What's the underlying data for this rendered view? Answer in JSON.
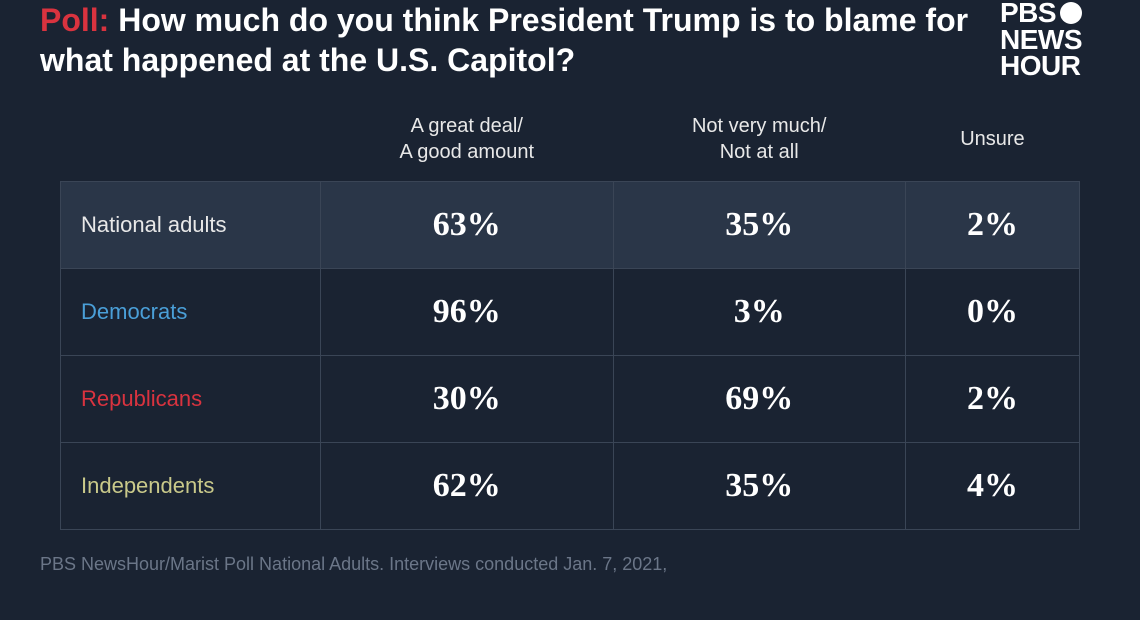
{
  "colors": {
    "background": "#1a2332",
    "text_white": "#ffffff",
    "text_light": "#e8e8e8",
    "poll_red": "#d9333f",
    "dem_blue": "#4a9fd8",
    "rep_red": "#d9333f",
    "ind_khaki": "#c9c98a",
    "border": "#3a4556",
    "highlight_row": "#2a3648",
    "footer_gray": "#6b7688"
  },
  "title": {
    "poll_label": "Poll:",
    "text": "How much do you think President Trump is to blame for what happened at the U.S. Capitol?"
  },
  "logo": {
    "line1a": "PBS",
    "line2": "NEWS",
    "line3": "HOUR"
  },
  "table": {
    "type": "table",
    "headers": [
      "",
      "A great deal/\nA good amount",
      "Not very much/\nNot at all",
      "Unsure"
    ],
    "rows": [
      {
        "label": "National adults",
        "label_color": "#e8e8e8",
        "values": [
          "63%",
          "35%",
          "2%"
        ],
        "highlight": true
      },
      {
        "label": "Democrats",
        "label_color": "#4a9fd8",
        "values": [
          "96%",
          "3%",
          "0%"
        ],
        "highlight": false
      },
      {
        "label": "Republicans",
        "label_color": "#d9333f",
        "values": [
          "30%",
          "69%",
          "2%"
        ],
        "highlight": false
      },
      {
        "label": "Independents",
        "label_color": "#c9c98a",
        "values": [
          "62%",
          "35%",
          "4%"
        ],
        "highlight": false
      }
    ],
    "header_fontsize": 20,
    "label_fontsize": 22,
    "value_fontsize": 34,
    "row_padding": 24
  },
  "footer": "PBS NewsHour/Marist Poll National Adults. Interviews conducted Jan. 7, 2021,"
}
